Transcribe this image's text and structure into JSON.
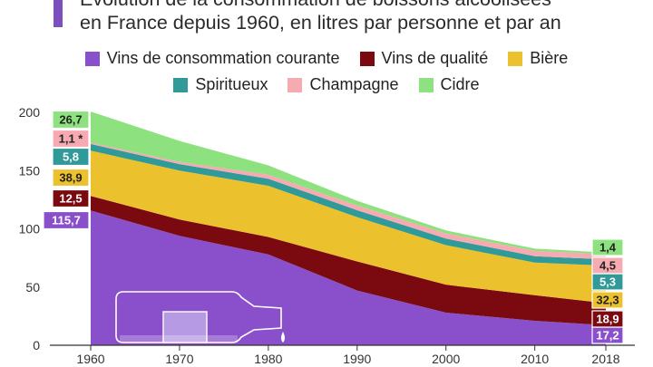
{
  "title_lines": [
    "Évolution de la consommation de boissons alcoolisées",
    "en France depuis 1960, en litres par personne et par an"
  ],
  "colors": {
    "vins_courants": "#8a4fcb",
    "vins_qualite": "#7a0a0f",
    "biere": "#ecc12e",
    "spiritueux": "#2f9a97",
    "champagne": "#f7aab1",
    "cidre": "#8de27f",
    "axis": "#333333",
    "bottle": "#ffffff"
  },
  "chart_data": {
    "type": "area",
    "stacked": true,
    "x": [
      1960,
      1970,
      1980,
      1990,
      2000,
      2010,
      2018
    ],
    "ylim": [
      0,
      200
    ],
    "y_ticks": [
      "0",
      "50",
      "100",
      "150",
      "200"
    ],
    "x_ticks": [
      "1960",
      "1970",
      "1980",
      "1990",
      "2000",
      "2010",
      "2018"
    ],
    "legend_placement": "top",
    "series": [
      {
        "name": "Vins de consommation courante",
        "color_key": "vins_courants",
        "values": [
          115.7,
          94,
          78,
          47,
          28,
          21,
          17.2
        ]
      },
      {
        "name": "Vins de qualité",
        "color_key": "vins_qualite",
        "values": [
          12.5,
          14,
          15,
          25,
          24,
          22,
          18.9
        ]
      },
      {
        "name": "Bière",
        "color_key": "biere",
        "values": [
          38.9,
          42,
          44,
          38,
          34,
          28,
          32.3
        ]
      },
      {
        "name": "Spiritueux",
        "color_key": "spiritueux",
        "values": [
          5.8,
          5.5,
          6,
          6,
          5.6,
          5.5,
          5.3
        ]
      },
      {
        "name": "Champagne",
        "color_key": "champagne",
        "values": [
          1.1,
          2,
          3.5,
          4,
          4.5,
          4.5,
          4.5
        ]
      },
      {
        "name": "Cidre",
        "color_key": "cidre",
        "values": [
          26.7,
          18,
          8,
          4,
          2.5,
          2,
          1.4
        ]
      }
    ],
    "start_labels": [
      "115,7",
      "12,5",
      "38,9",
      "5,8",
      "1,1 *",
      "26,7"
    ],
    "end_labels": [
      "17,2",
      "18,9",
      "32,3",
      "5,3",
      "4,5",
      "1,4"
    ]
  }
}
